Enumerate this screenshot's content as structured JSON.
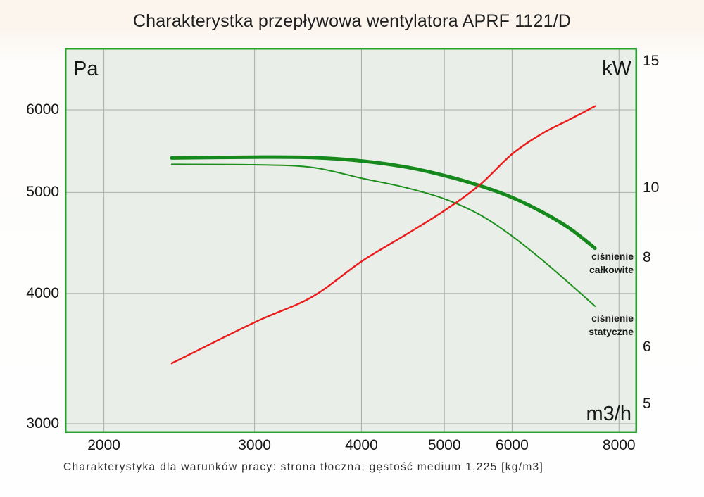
{
  "title": "Charakterystka przepływowa wentylatora APRF 1121/D",
  "caption": "Charakterystyka dla warunków pracy: strona tłoczna; gęstość medium 1,225 [kg/m3]",
  "colors": {
    "plot_bg": "#e9eee9",
    "plot_border": "#28a12d",
    "grid": "#a9aeaa",
    "total_pressure_curve": "#15891b",
    "static_pressure_curve": "#1d8f1d",
    "power_curve": "#ec1b1b"
  },
  "chart_data": {
    "type": "line",
    "title": "Charakterystka przepływowa wentylatora APRF 1121/D",
    "grid": true,
    "legend_position": "labels-inside-right",
    "x_axis": {
      "unit": "m3/h",
      "scale": "log",
      "range": [
        1800,
        8400
      ],
      "ticks": [
        2000,
        3000,
        4000,
        5000,
        6000,
        8000
      ]
    },
    "y_axis_left": {
      "unit": "Pa",
      "scale": "log",
      "range": [
        2940,
        6880
      ],
      "ticks": [
        6000,
        5000,
        4000,
        3000
      ]
    },
    "y_axis_right": {
      "unit": "kW",
      "scale": "log",
      "range": [
        4.56,
        15.67
      ],
      "ticks": [
        15,
        10,
        8,
        6,
        5
      ]
    },
    "x": [
      2400,
      3000,
      3500,
      4000,
      4500,
      5000,
      5500,
      6000,
      6500,
      7000,
      7500
    ],
    "series": [
      {
        "name": "ciśnienie całkowite",
        "label": "ciśnienie całkowite",
        "axis": "left",
        "unit": "Pa",
        "color": "#15891b",
        "stroke_width": 5,
        "values": [
          5395,
          5405,
          5400,
          5360,
          5290,
          5190,
          5075,
          4945,
          4790,
          4620,
          4420
        ]
      },
      {
        "name": "ciśnienie statyczne",
        "label": "ciśnienie statyczne",
        "axis": "left",
        "unit": "Pa",
        "color": "#1d8f1d",
        "stroke_width": 2,
        "values": [
          5320,
          5315,
          5285,
          5160,
          5055,
          4930,
          4760,
          4540,
          4310,
          4090,
          3890
        ]
      },
      {
        "name": "kW",
        "label": "",
        "axis": "right",
        "unit": "kW",
        "color": "#ec1b1b",
        "stroke_width": 2.4,
        "values": [
          5.7,
          6.5,
          7.05,
          7.9,
          8.6,
          9.3,
          10.1,
          11.15,
          11.9,
          12.45,
          13.0
        ]
      }
    ]
  }
}
